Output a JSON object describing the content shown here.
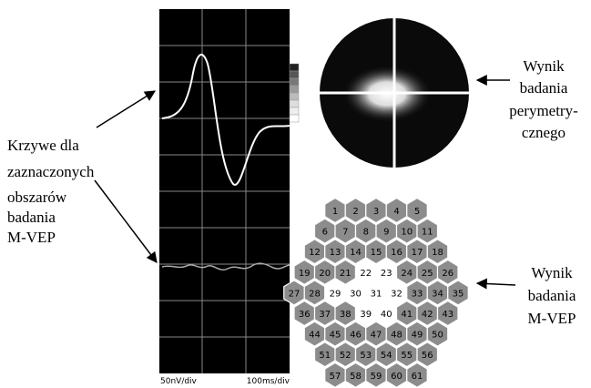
{
  "left_label": [
    "Krzywe dla",
    "zaznaczonych",
    "obszarów",
    "badania",
    "M-VEP"
  ],
  "top_right_label": [
    "Wynik",
    "badania",
    "perymetry-",
    "cznego"
  ],
  "bottom_right_label": [
    "Wynik",
    "badania",
    "M-VEP"
  ],
  "scale_labels": [
    "50nV/div",
    "100ms/div"
  ],
  "hex_rows": [
    5,
    6,
    7,
    8,
    9,
    8,
    7,
    6,
    5
  ],
  "cells": [
    {
      "label": "1",
      "color": "#8c8c8c"
    },
    {
      "label": "2",
      "color": "#8c8c8c"
    },
    {
      "label": "3",
      "color": "#8c8c8c"
    },
    {
      "label": "4",
      "color": "#8c8c8c"
    },
    {
      "label": "5",
      "color": "#8c8c8c"
    },
    {
      "label": "6",
      "color": "#8c8c8c"
    },
    {
      "label": "7",
      "color": "#8c8c8c"
    },
    {
      "label": "8",
      "color": "#8c8c8c"
    },
    {
      "label": "9",
      "color": "#8c8c8c"
    },
    {
      "label": "10",
      "color": "#8c8c8c"
    },
    {
      "label": "11",
      "color": "#8c8c8c"
    },
    {
      "label": "12",
      "color": "#8c8c8c"
    },
    {
      "label": "13",
      "color": "#8c8c8c"
    },
    {
      "label": "14",
      "color": "#8c8c8c"
    },
    {
      "label": "15",
      "color": "#8c8c8c"
    },
    {
      "label": "16",
      "color": "#8c8c8c"
    },
    {
      "label": "17",
      "color": "#8c8c8c"
    },
    {
      "label": "18",
      "color": "#8c8c8c"
    },
    {
      "label": "19",
      "color": "#8c8c8c"
    },
    {
      "label": "20",
      "color": "#8c8c8c"
    },
    {
      "label": "21",
      "color": "#8c8c8c"
    },
    {
      "label": "22",
      "color": "#ffffff"
    },
    {
      "label": "23",
      "color": "#ffffff"
    },
    {
      "label": "24",
      "color": "#8c8c8c"
    },
    {
      "label": "25",
      "color": "#8c8c8c"
    },
    {
      "label": "26",
      "color": "#8c8c8c"
    },
    {
      "label": "27",
      "color": "#8c8c8c"
    },
    {
      "label": "28",
      "color": "#8c8c8c"
    },
    {
      "label": "29",
      "color": "#ffffff"
    },
    {
      "label": "30",
      "color": "#ffffff"
    },
    {
      "label": "31",
      "color": "#ffffff"
    },
    {
      "label": "32",
      "color": "#ffffff"
    },
    {
      "label": "33",
      "color": "#8c8c8c"
    },
    {
      "label": "34",
      "color": "#8c8c8c"
    },
    {
      "label": "35",
      "color": "#8c8c8c"
    },
    {
      "label": "36",
      "color": "#8c8c8c"
    },
    {
      "label": "37",
      "color": "#8c8c8c"
    },
    {
      "label": "38",
      "color": "#8c8c8c"
    },
    {
      "label": "39",
      "color": "#ffffff"
    },
    {
      "label": "40",
      "color": "#ffffff"
    },
    {
      "label": "41",
      "color": "#8c8c8c"
    },
    {
      "label": "42",
      "color": "#8c8c8c"
    },
    {
      "label": "43",
      "color": "#8c8c8c"
    },
    {
      "label": "44",
      "color": "#8c8c8c"
    },
    {
      "label": "45",
      "color": "#8c8c8c"
    },
    {
      "label": "46",
      "color": "#8c8c8c"
    },
    {
      "label": "47",
      "color": "#8c8c8c"
    },
    {
      "label": "48",
      "color": "#8c8c8c"
    },
    {
      "label": "49",
      "color": "#8c8c8c"
    },
    {
      "label": "50",
      "color": "#8c8c8c"
    },
    {
      "label": "51",
      "color": "#8c8c8c"
    },
    {
      "label": "52",
      "color": "#8c8c8c"
    },
    {
      "label": "53",
      "color": "#8c8c8c"
    },
    {
      "label": "54",
      "color": "#8c8c8c"
    },
    {
      "label": "55",
      "color": "#8c8c8c"
    },
    {
      "label": "56",
      "color": "#8c8c8c"
    },
    {
      "label": "57",
      "color": "#8c8c8c"
    },
    {
      "label": "58",
      "color": "#8c8c8c"
    },
    {
      "label": "59",
      "color": "#8c8c8c"
    },
    {
      "label": "60",
      "color": "#8c8c8c"
    },
    {
      "label": "61",
      "color": "#8c8c8c"
    }
  ]
}
